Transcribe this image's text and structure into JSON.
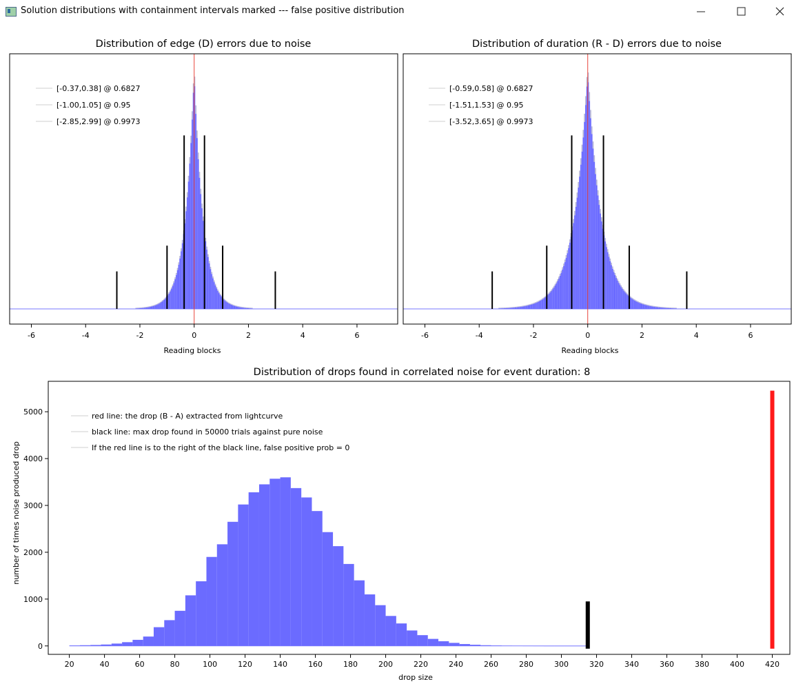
{
  "window": {
    "title": "Solution distributions with containment intervals marked --- false positive distribution",
    "minimize_icon": "minimize-icon",
    "maximize_icon": "maximize-icon",
    "close_icon": "close-icon"
  },
  "chart_data": [
    {
      "type": "bar",
      "title": "Distribution of edge (D) errors due to noise",
      "xlabel": "Reading blocks",
      "ylabel": "",
      "xlim": [
        -6.8,
        7.5
      ],
      "xticks": [
        -6,
        -4,
        -2,
        0,
        2,
        4,
        6
      ],
      "grid": false,
      "legend_position": "top-left",
      "legend": [
        "[-0.37,0.38] @ 0.6827",
        "[-1.00,1.05] @ 0.95",
        "[-2.85,2.99] @ 0.9973"
      ],
      "center_line": {
        "x": 0,
        "color": "#e8443a"
      },
      "intervals": [
        {
          "lo": -0.37,
          "hi": 0.38,
          "prob": 0.6827
        },
        {
          "lo": -1.0,
          "hi": 1.05,
          "prob": 0.95
        },
        {
          "lo": -2.85,
          "hi": 2.99,
          "prob": 0.9973
        }
      ],
      "distribution_shape": "laplace",
      "scale": 0.34,
      "fill_color": "#6b6bff"
    },
    {
      "type": "bar",
      "title": "Distribution of duration (R - D) errors due to noise",
      "xlabel": "Reading blocks",
      "ylabel": "",
      "xlim": [
        -6.8,
        7.5
      ],
      "xticks": [
        -6,
        -4,
        -2,
        0,
        2,
        4,
        6
      ],
      "grid": false,
      "legend_position": "top-left",
      "legend": [
        "[-0.59,0.58] @ 0.6827",
        "[-1.51,1.53] @ 0.95",
        "[-3.52,3.65] @ 0.9973"
      ],
      "center_line": {
        "x": 0,
        "color": "#e8443a"
      },
      "intervals": [
        {
          "lo": -0.59,
          "hi": 0.58,
          "prob": 0.6827
        },
        {
          "lo": -1.51,
          "hi": 1.53,
          "prob": 0.95
        },
        {
          "lo": -3.52,
          "hi": 3.65,
          "prob": 0.9973
        }
      ],
      "distribution_shape": "laplace",
      "scale": 0.52,
      "fill_color": "#6b6bff"
    },
    {
      "type": "bar",
      "title": "Distribution of drops found in correlated noise for event duration: 8",
      "xlabel": "drop size",
      "ylabel": "number of times noise produced drop",
      "xlim": [
        8,
        430
      ],
      "ylim": [
        -180,
        5650
      ],
      "xticks": [
        20,
        40,
        60,
        80,
        100,
        120,
        140,
        160,
        180,
        200,
        220,
        240,
        260,
        280,
        300,
        320,
        340,
        360,
        380,
        400,
        420
      ],
      "yticks": [
        0,
        1000,
        2000,
        3000,
        4000,
        5000
      ],
      "grid": false,
      "legend_position": "top-left",
      "legend": [
        "red line: the drop (B - A) extracted from lightcurve",
        "black line: max drop found in 50000 trials against pure noise",
        "If the red line is to the right of the black line, false positive prob = 0"
      ],
      "bin_width": 6,
      "bins": [
        {
          "x": 20,
          "y": 10
        },
        {
          "x": 26,
          "y": 15
        },
        {
          "x": 32,
          "y": 20
        },
        {
          "x": 38,
          "y": 30
        },
        {
          "x": 44,
          "y": 50
        },
        {
          "x": 50,
          "y": 80
        },
        {
          "x": 56,
          "y": 130
        },
        {
          "x": 62,
          "y": 200
        },
        {
          "x": 68,
          "y": 400
        },
        {
          "x": 74,
          "y": 550
        },
        {
          "x": 80,
          "y": 750
        },
        {
          "x": 86,
          "y": 1080
        },
        {
          "x": 92,
          "y": 1380
        },
        {
          "x": 98,
          "y": 1900
        },
        {
          "x": 104,
          "y": 2170
        },
        {
          "x": 110,
          "y": 2650
        },
        {
          "x": 116,
          "y": 3020
        },
        {
          "x": 122,
          "y": 3280
        },
        {
          "x": 128,
          "y": 3450
        },
        {
          "x": 134,
          "y": 3570
        },
        {
          "x": 140,
          "y": 3600
        },
        {
          "x": 146,
          "y": 3370
        },
        {
          "x": 152,
          "y": 3170
        },
        {
          "x": 158,
          "y": 2880
        },
        {
          "x": 164,
          "y": 2430
        },
        {
          "x": 170,
          "y": 2130
        },
        {
          "x": 176,
          "y": 1750
        },
        {
          "x": 182,
          "y": 1400
        },
        {
          "x": 188,
          "y": 1100
        },
        {
          "x": 194,
          "y": 870
        },
        {
          "x": 200,
          "y": 640
        },
        {
          "x": 206,
          "y": 480
        },
        {
          "x": 212,
          "y": 330
        },
        {
          "x": 218,
          "y": 230
        },
        {
          "x": 224,
          "y": 150
        },
        {
          "x": 230,
          "y": 100
        },
        {
          "x": 236,
          "y": 65
        },
        {
          "x": 242,
          "y": 40
        },
        {
          "x": 248,
          "y": 25
        },
        {
          "x": 254,
          "y": 15
        },
        {
          "x": 260,
          "y": 10
        },
        {
          "x": 266,
          "y": 6
        },
        {
          "x": 272,
          "y": 4
        },
        {
          "x": 278,
          "y": 3
        },
        {
          "x": 284,
          "y": 2
        },
        {
          "x": 290,
          "y": 1
        },
        {
          "x": 296,
          "y": 1
        },
        {
          "x": 302,
          "y": 1
        },
        {
          "x": 308,
          "y": 1
        }
      ],
      "black_line": {
        "x": 315,
        "height": 950,
        "color": "#000000"
      },
      "red_line": {
        "x": 420,
        "height": 5450,
        "color": "#ff1a1a"
      },
      "fill_color": "#6b6bff"
    }
  ]
}
